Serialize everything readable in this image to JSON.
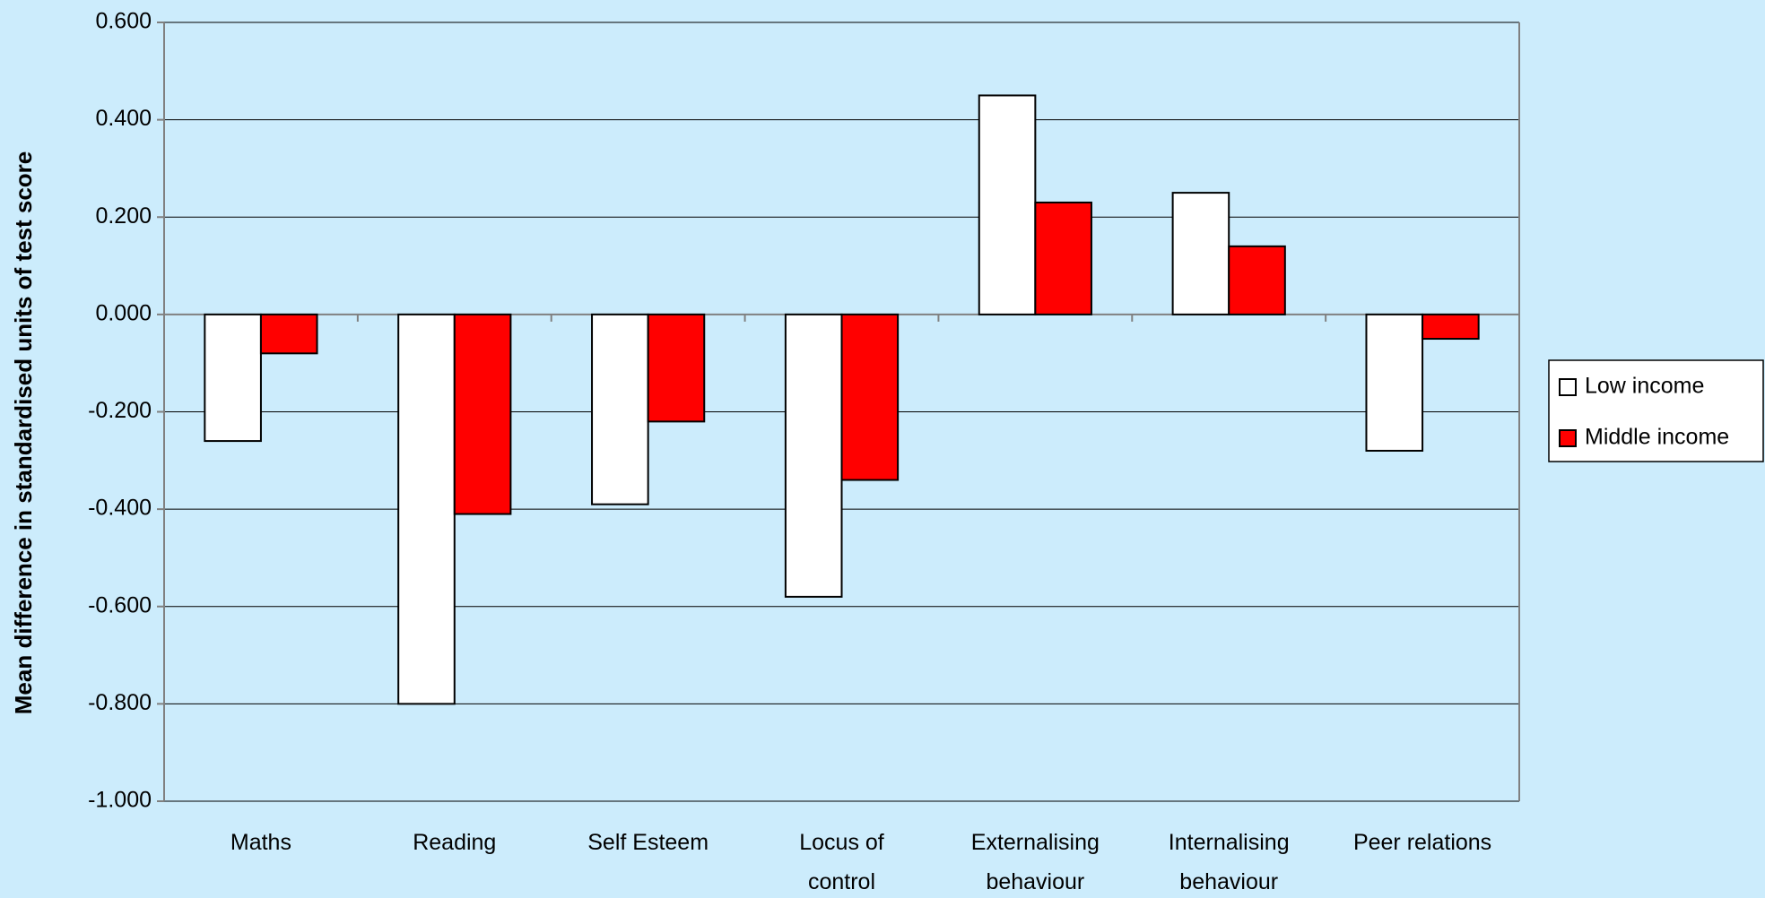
{
  "chart_data": {
    "type": "bar",
    "y_label": "Mean difference in standardised units of test score",
    "categories": [
      "Maths",
      "Reading",
      "Self Esteem",
      "Locus of control",
      "Externalising behaviour",
      "Internalising behaviour",
      "Peer relations"
    ],
    "series": [
      {
        "name": "Low income",
        "color": "#ffffff",
        "values": [
          -0.26,
          -0.8,
          -0.39,
          -0.58,
          0.45,
          0.25,
          -0.28
        ]
      },
      {
        "name": "Middle income",
        "color": "#ff0000",
        "values": [
          -0.08,
          -0.41,
          -0.22,
          -0.34,
          0.23,
          0.14,
          -0.05
        ]
      }
    ],
    "ylim": [
      -1.0,
      0.6
    ],
    "yticks": [
      {
        "value": -1.0,
        "label": "-1.000"
      },
      {
        "value": -0.8,
        "label": "-0.800"
      },
      {
        "value": -0.6,
        "label": "-0.600"
      },
      {
        "value": -0.4,
        "label": "-0.400"
      },
      {
        "value": -0.2,
        "label": "-0.200"
      },
      {
        "value": 0,
        "label": "0.000"
      },
      {
        "value": 0.2,
        "label": "0.200"
      },
      {
        "value": 0.4,
        "label": "0.400"
      },
      {
        "value": 0.6,
        "label": "0.600"
      }
    ],
    "grid": true,
    "legend": "right"
  }
}
